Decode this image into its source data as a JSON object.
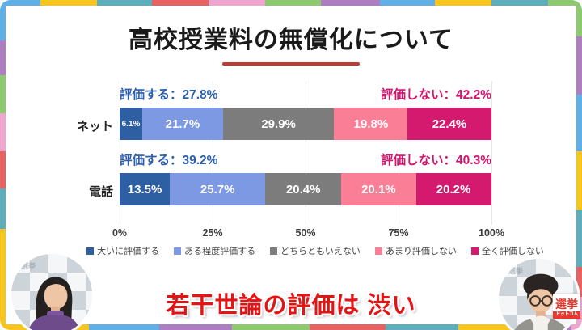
{
  "page": {
    "title": "高校授業料の無償化について",
    "caption": "若干世論の評価は 渋い"
  },
  "chart_data": {
    "type": "bar",
    "variant": "horizontal-stacked",
    "title": "高校授業料の無償化について",
    "categories": [
      "ネット",
      "電話"
    ],
    "series": [
      {
        "name": "大いに評価する",
        "color": "#2e5fa3",
        "values": [
          6.1,
          13.5
        ]
      },
      {
        "name": "ある程度評価する",
        "color": "#7d99e3",
        "values": [
          21.7,
          25.7
        ]
      },
      {
        "name": "どちらともいえない",
        "color": "#7c7c7c",
        "values": [
          29.9,
          20.4
        ]
      },
      {
        "name": "あまり評価しない",
        "color": "#fa7e96",
        "values": [
          19.8,
          20.1
        ]
      },
      {
        "name": "全く評価しない",
        "color": "#d31a6e",
        "values": [
          22.4,
          20.2
        ]
      }
    ],
    "rows": [
      {
        "label": "ネット",
        "approve": "評価する：27.8%",
        "disapprove": "評価しない：42.2%",
        "segments": [
          {
            "label": "6.1%",
            "value": 6.1,
            "color": "#2e5fa3"
          },
          {
            "label": "21.7%",
            "value": 21.7,
            "color": "#7d99e3"
          },
          {
            "label": "29.9%",
            "value": 29.9,
            "color": "#7c7c7c"
          },
          {
            "label": "19.8%",
            "value": 19.8,
            "color": "#fa7e96"
          },
          {
            "label": "22.4%",
            "value": 22.4,
            "color": "#d31a6e"
          }
        ]
      },
      {
        "label": "電話",
        "approve": "評価する：39.2%",
        "disapprove": "評価しない：40.3%",
        "segments": [
          {
            "label": "13.5%",
            "value": 13.5,
            "color": "#2e5fa3"
          },
          {
            "label": "25.7%",
            "value": 25.7,
            "color": "#7d99e3"
          },
          {
            "label": "20.4%",
            "value": 20.4,
            "color": "#7c7c7c"
          },
          {
            "label": "20.1%",
            "value": 20.1,
            "color": "#fa7e96"
          },
          {
            "label": "20.2%",
            "value": 20.2,
            "color": "#d31a6e"
          }
        ]
      }
    ],
    "x_ticks": [
      "0%",
      "25%",
      "50%",
      "75%",
      "100%"
    ],
    "xlim": [
      0,
      100
    ],
    "grid": true,
    "legend_position": "bottom",
    "legend": [
      {
        "label": "大いに評価する",
        "color": "#2e5fa3"
      },
      {
        "label": "ある程度評価する",
        "color": "#7d99e3"
      },
      {
        "label": "どちらともいえない",
        "color": "#7c7c7c"
      },
      {
        "label": "あまり評価しない",
        "color": "#fa7e96"
      },
      {
        "label": "全く評価しない",
        "color": "#d31a6e"
      }
    ],
    "annotation_colors": {
      "approve": "#2d5fb0",
      "disapprove": "#d4156d"
    },
    "accent_colors": {
      "title_underline": "#bf3a32",
      "caption_text": "#e41414"
    }
  },
  "overlay": {
    "backdrop_text": "選挙",
    "logo": {
      "line1": "選挙",
      "line2": "ドットコム"
    }
  }
}
